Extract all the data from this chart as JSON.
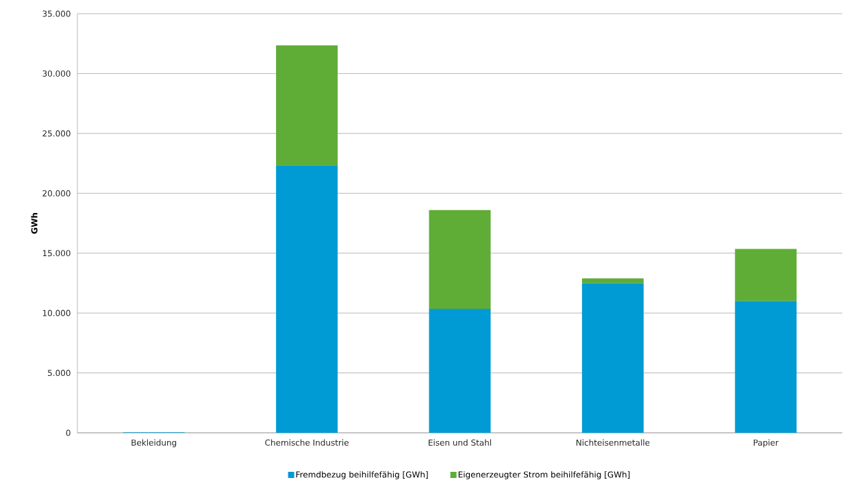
{
  "chart_data": {
    "type": "bar",
    "stacked": true,
    "ylabel": "GWh",
    "categories": [
      "Bekleidung",
      "Chemische Industrie",
      "Eisen und Stahl",
      "Nichteisenmetalle",
      "Papier"
    ],
    "series": [
      {
        "name": "Fremdbezug beihilfefähig [GWh]",
        "color": "#009bd4",
        "values": [
          50,
          22350,
          10350,
          12500,
          11000
        ]
      },
      {
        "name": "Eigenerzeugter Strom beihilfefähig [GWh]",
        "color": "#5fad36",
        "values": [
          0,
          10000,
          8250,
          400,
          4350
        ]
      }
    ],
    "ylim": [
      0,
      35000
    ],
    "yticks": [
      {
        "value": 0,
        "label": "0"
      },
      {
        "value": 5000,
        "label": "5.000"
      },
      {
        "value": 10000,
        "label": "10.000"
      },
      {
        "value": 15000,
        "label": "15.000"
      },
      {
        "value": 20000,
        "label": "20.000"
      },
      {
        "value": 25000,
        "label": "25.000"
      },
      {
        "value": 30000,
        "label": "30.000"
      },
      {
        "value": 35000,
        "label": "35.000"
      }
    ],
    "grid": "y",
    "legend": "bottom"
  }
}
